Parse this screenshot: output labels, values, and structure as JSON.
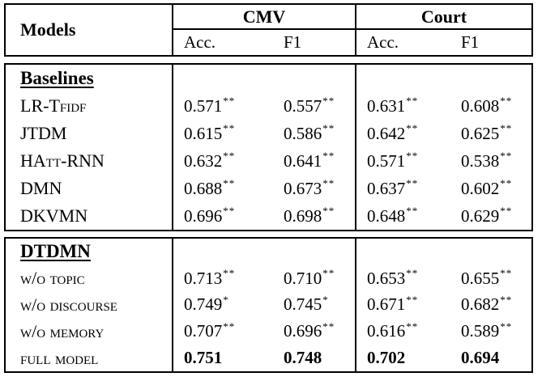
{
  "table": {
    "models_header": "Models",
    "col_groups": [
      {
        "title": "CMV",
        "sub": [
          "Acc.",
          "F1"
        ]
      },
      {
        "title": "Court",
        "sub": [
          "Acc.",
          "F1"
        ]
      }
    ],
    "sections": [
      {
        "title": "Baselines",
        "rows": [
          {
            "model": "LR-Tfidf",
            "cmv_acc": "0.571",
            "cmv_acc_sig": "**",
            "cmv_f1": "0.557",
            "cmv_f1_sig": "**",
            "court_acc": "0.631",
            "court_acc_sig": "**",
            "court_f1": "0.608",
            "court_f1_sig": "**"
          },
          {
            "model": "JTDM",
            "cmv_acc": "0.615",
            "cmv_acc_sig": "**",
            "cmv_f1": "0.586",
            "cmv_f1_sig": "**",
            "court_acc": "0.642",
            "court_acc_sig": "**",
            "court_f1": "0.625",
            "court_f1_sig": "**"
          },
          {
            "model": "HAtt-RNN",
            "cmv_acc": "0.632",
            "cmv_acc_sig": "**",
            "cmv_f1": "0.641",
            "cmv_f1_sig": "**",
            "court_acc": "0.571",
            "court_acc_sig": "**",
            "court_f1": "0.538",
            "court_f1_sig": "**"
          },
          {
            "model": "DMN",
            "cmv_acc": "0.688",
            "cmv_acc_sig": "**",
            "cmv_f1": "0.673",
            "cmv_f1_sig": "**",
            "court_acc": "0.637",
            "court_acc_sig": "**",
            "court_f1": "0.602",
            "court_f1_sig": "**"
          },
          {
            "model": "DKVMN",
            "cmv_acc": "0.696",
            "cmv_acc_sig": "**",
            "cmv_f1": "0.698",
            "cmv_f1_sig": "**",
            "court_acc": "0.648",
            "court_acc_sig": "**",
            "court_f1": "0.629",
            "court_f1_sig": "**"
          }
        ]
      },
      {
        "title": "DTDMN",
        "rows": [
          {
            "model": "w/o topic",
            "cmv_acc": "0.713",
            "cmv_acc_sig": "**",
            "cmv_f1": "0.710",
            "cmv_f1_sig": "**",
            "court_acc": "0.653",
            "court_acc_sig": "**",
            "court_f1": "0.655",
            "court_f1_sig": "**"
          },
          {
            "model": "w/o discourse",
            "cmv_acc": "0.749",
            "cmv_acc_sig": "*",
            "cmv_f1": "0.745",
            "cmv_f1_sig": "*",
            "court_acc": "0.671",
            "court_acc_sig": "**",
            "court_f1": "0.682",
            "court_f1_sig": "**"
          },
          {
            "model": "w/o memory",
            "cmv_acc": "0.707",
            "cmv_acc_sig": "**",
            "cmv_f1": "0.696",
            "cmv_f1_sig": "**",
            "court_acc": "0.616",
            "court_acc_sig": "**",
            "court_f1": "0.589",
            "court_f1_sig": "**"
          },
          {
            "model": "full model",
            "cmv_acc": "0.751",
            "cmv_acc_sig": "",
            "cmv_f1": "0.748",
            "cmv_f1_sig": "",
            "court_acc": "0.702",
            "court_acc_sig": "",
            "court_f1": "0.694",
            "court_f1_sig": ""
          }
        ]
      }
    ]
  }
}
